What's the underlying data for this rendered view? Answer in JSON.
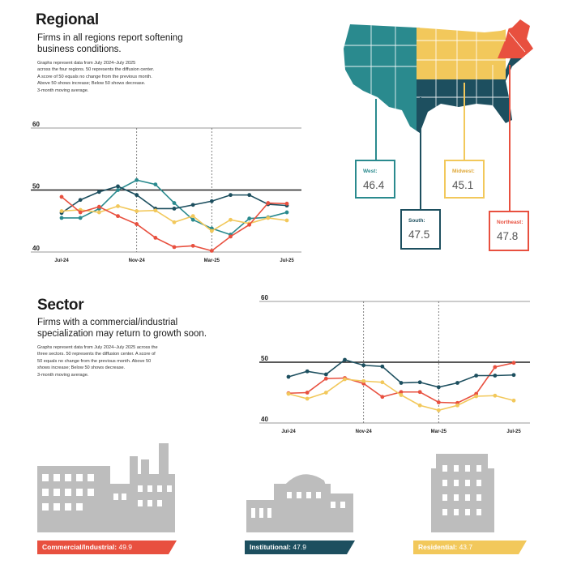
{
  "regional": {
    "title": "Regional",
    "subtitle_line1": "Firms in all regions report softening",
    "subtitle_line2": "business conditions.",
    "note_lines": [
      "Graphs represent data from July 2024–July 2025",
      "across the four regions. 50 represents the diffusion center.",
      "A score of 50 equals no change from the previous month.",
      "Above 50 shows increase; Below 50 shows decrease.",
      "3-month moving average."
    ],
    "regions": [
      {
        "label": "West:",
        "value": "46.4"
      },
      {
        "label": "South:",
        "value": "47.5"
      },
      {
        "label": "Midwest:",
        "value": "45.1"
      },
      {
        "label": "Northeast:",
        "value": "47.8"
      }
    ]
  },
  "sector": {
    "title": "Sector",
    "subtitle_line1": "Firms with a commercial/industrial",
    "subtitle_line2": "specialization may return to growth soon.",
    "note_lines": [
      "Graphs represent data from July 2024–July 2025 across the",
      "three sectors. 50 represents the diffusion center. A score of",
      "50 equals no change from the previous month. Above 50",
      "shows increase; Below 50 shows decrease.",
      "3-month moving average."
    ],
    "ribbons": [
      {
        "label": "Commercial/Industrial:",
        "value": "49.9"
      },
      {
        "label": "Institutional:",
        "value": "47.9"
      },
      {
        "label": "Residential:",
        "value": "43.7"
      }
    ]
  },
  "colors": {
    "teal": "#2a8a8e",
    "navy": "#1d4f5f",
    "yellow": "#f2c85b",
    "red": "#e8503f",
    "gray": "#bdbdbd"
  },
  "icons": [
    "us-map-icon",
    "factory-building-icon",
    "institutional-building-icon",
    "apartment-building-icon"
  ],
  "chart_data": [
    {
      "type": "line",
      "title": "",
      "xlabel": "",
      "ylabel": "",
      "ylim": [
        40,
        60
      ],
      "yticks": [
        "40",
        "50",
        "60"
      ],
      "xticks": [
        "Jul-24",
        "Nov-24",
        "Mar-25",
        "Jul-25"
      ],
      "x": [
        "Jul-24",
        "Aug-24",
        "Sep-24",
        "Oct-24",
        "Nov-24",
        "Dec-24",
        "Jan-25",
        "Feb-25",
        "Mar-25",
        "Apr-25",
        "May-25",
        "Jun-25",
        "Jul-25"
      ],
      "series": [
        {
          "color": "teal",
          "values": [
            45.5,
            45.5,
            47.0,
            50.0,
            51.6,
            50.9,
            47.9,
            45.2,
            43.8,
            42.8,
            45.4,
            45.6,
            46.4
          ]
        },
        {
          "color": "navy",
          "values": [
            46.3,
            48.4,
            49.7,
            50.6,
            49.2,
            47.0,
            47.0,
            47.6,
            48.2,
            49.2,
            49.2,
            47.7,
            47.5
          ]
        },
        {
          "color": "yellow",
          "values": [
            46.6,
            46.8,
            46.4,
            47.4,
            46.6,
            46.7,
            44.8,
            45.8,
            43.4,
            45.2,
            44.6,
            45.5,
            45.1
          ]
        },
        {
          "color": "red",
          "values": [
            48.9,
            46.4,
            47.3,
            45.8,
            44.5,
            42.3,
            40.8,
            41.0,
            40.2,
            42.5,
            44.4,
            47.9,
            47.8
          ]
        }
      ]
    },
    {
      "type": "line",
      "title": "",
      "xlabel": "",
      "ylabel": "",
      "ylim": [
        40,
        60
      ],
      "yticks": [
        "40",
        "50",
        "60"
      ],
      "xticks": [
        "Jul-24",
        "Nov-24",
        "Mar-25",
        "Jul-25"
      ],
      "x": [
        "Jul-24",
        "Aug-24",
        "Sep-24",
        "Oct-24",
        "Nov-24",
        "Dec-24",
        "Jan-25",
        "Feb-25",
        "Mar-25",
        "Apr-25",
        "May-25",
        "Jun-25",
        "Jul-25"
      ],
      "series": [
        {
          "color": "red",
          "values": [
            44.9,
            45.0,
            47.3,
            47.4,
            46.5,
            44.3,
            45.1,
            45.1,
            43.4,
            43.3,
            44.8,
            49.2,
            49.9
          ]
        },
        {
          "color": "navy",
          "values": [
            47.6,
            48.5,
            48.0,
            50.4,
            49.5,
            49.3,
            46.6,
            46.7,
            45.9,
            46.6,
            47.8,
            47.8,
            47.9
          ]
        },
        {
          "color": "yellow",
          "values": [
            44.8,
            44.0,
            45.0,
            47.2,
            46.9,
            46.7,
            44.6,
            42.9,
            42.1,
            42.9,
            44.4,
            44.5,
            43.7
          ]
        }
      ]
    }
  ]
}
